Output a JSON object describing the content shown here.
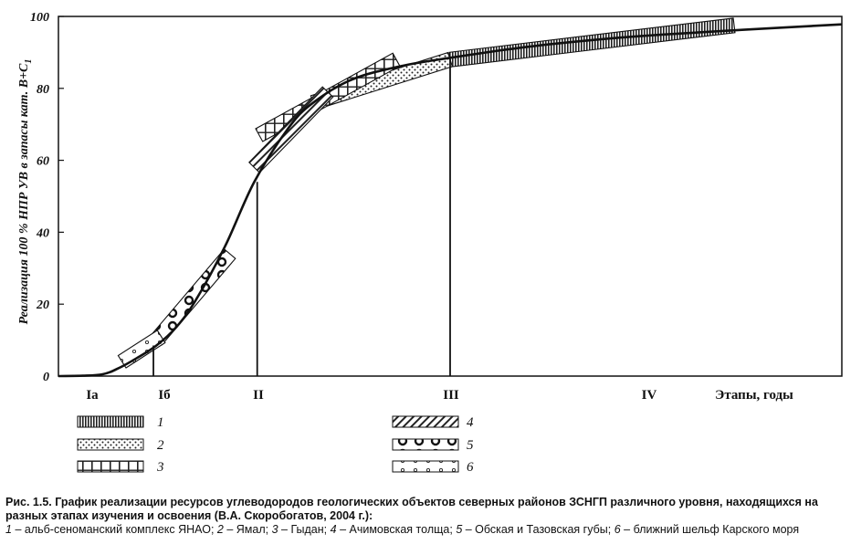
{
  "chart_data": {
    "type": "line",
    "ylabel": "Реализация 100 % НПР УВ в запасы кат. В+С",
    "ylabel_sub": "1",
    "xlabel": "Этапы, годы",
    "ylim": [
      0,
      100
    ],
    "y_ticks": [
      "0",
      "20",
      "40",
      "60",
      "80",
      "100"
    ],
    "stage_labels": [
      "Ia",
      "Iб",
      "II",
      "III",
      "IV"
    ],
    "grid": false,
    "curve": {
      "x": [
        0,
        0.25,
        0.45,
        0.6,
        0.8,
        1.0,
        1.2,
        1.4,
        1.7,
        2.0,
        2.35,
        2.6,
        3.0,
        3.5,
        4.0,
        4.5,
        5.0,
        5.6,
        6.2,
        7.0,
        8.0
      ],
      "y": [
        0,
        0.1,
        0.5,
        2.0,
        5.0,
        8.5,
        13.5,
        21.0,
        36.0,
        54.0,
        69.0,
        76.0,
        82.5,
        86.2,
        88.5,
        90.5,
        92.2,
        93.8,
        95.0,
        96.3,
        97.8
      ]
    },
    "stage_boundaries": [
      {
        "x": 0.97,
        "y_top": 8.5
      },
      {
        "x": 2.03,
        "y_top": 54.0
      },
      {
        "x": 4.0,
        "y_top": 88.5
      }
    ],
    "series": [
      {
        "name": "1",
        "pattern": "vertical-hatch",
        "x_start": 4.0,
        "x_end": 6.9,
        "y_start": 88.0,
        "y_end": 97.5
      },
      {
        "name": "2",
        "pattern": "dots",
        "x_start": 2.6,
        "x_end": 4.0,
        "y_start": 76.0,
        "y_end": 88.0
      },
      {
        "name": "3",
        "pattern": "grid",
        "x_start": 2.05,
        "x_end": 3.45,
        "y_start": 67.0,
        "y_end": 88.0
      },
      {
        "name": "4",
        "pattern": "diagonal-hatch",
        "x_start": 2.0,
        "x_end": 2.75,
        "y_start": 58.0,
        "y_end": 79.0
      },
      {
        "name": "5",
        "pattern": "circles",
        "x_start": 1.0,
        "x_end": 1.75,
        "y_start": 10.0,
        "y_end": 34.0
      },
      {
        "name": "6",
        "pattern": "small-circles",
        "x_start": 0.65,
        "x_end": 1.05,
        "y_start": 4.0,
        "y_end": 11.0
      }
    ]
  },
  "legend": [
    {
      "label": "1",
      "pattern": "vertical-hatch"
    },
    {
      "label": "2",
      "pattern": "dots"
    },
    {
      "label": "3",
      "pattern": "grid"
    },
    {
      "label": "4",
      "pattern": "diagonal-hatch"
    },
    {
      "label": "5",
      "pattern": "circles"
    },
    {
      "label": "6",
      "pattern": "small-circles"
    }
  ],
  "caption": {
    "lead": "Рис. 1.5. График реализации ресурсов углеводородов геологических объектов северных районов ЗСНГП различного уровня, находящихся на разных этапах изучения и освоения (В.А. Скоробогатов, 2004 г.):",
    "items": [
      {
        "num": "1",
        "text": "– альб-сеноманский комплекс ЯНАО;"
      },
      {
        "num": "2",
        "text": "– Ямал;"
      },
      {
        "num": "3",
        "text": "– Гыдан;"
      },
      {
        "num": "4",
        "text": "– Ачимовская толща;"
      },
      {
        "num": "5",
        "text": "– Обская и Тазовская губы;"
      },
      {
        "num": "6",
        "text": "– ближний шельф Карского моря"
      }
    ]
  }
}
